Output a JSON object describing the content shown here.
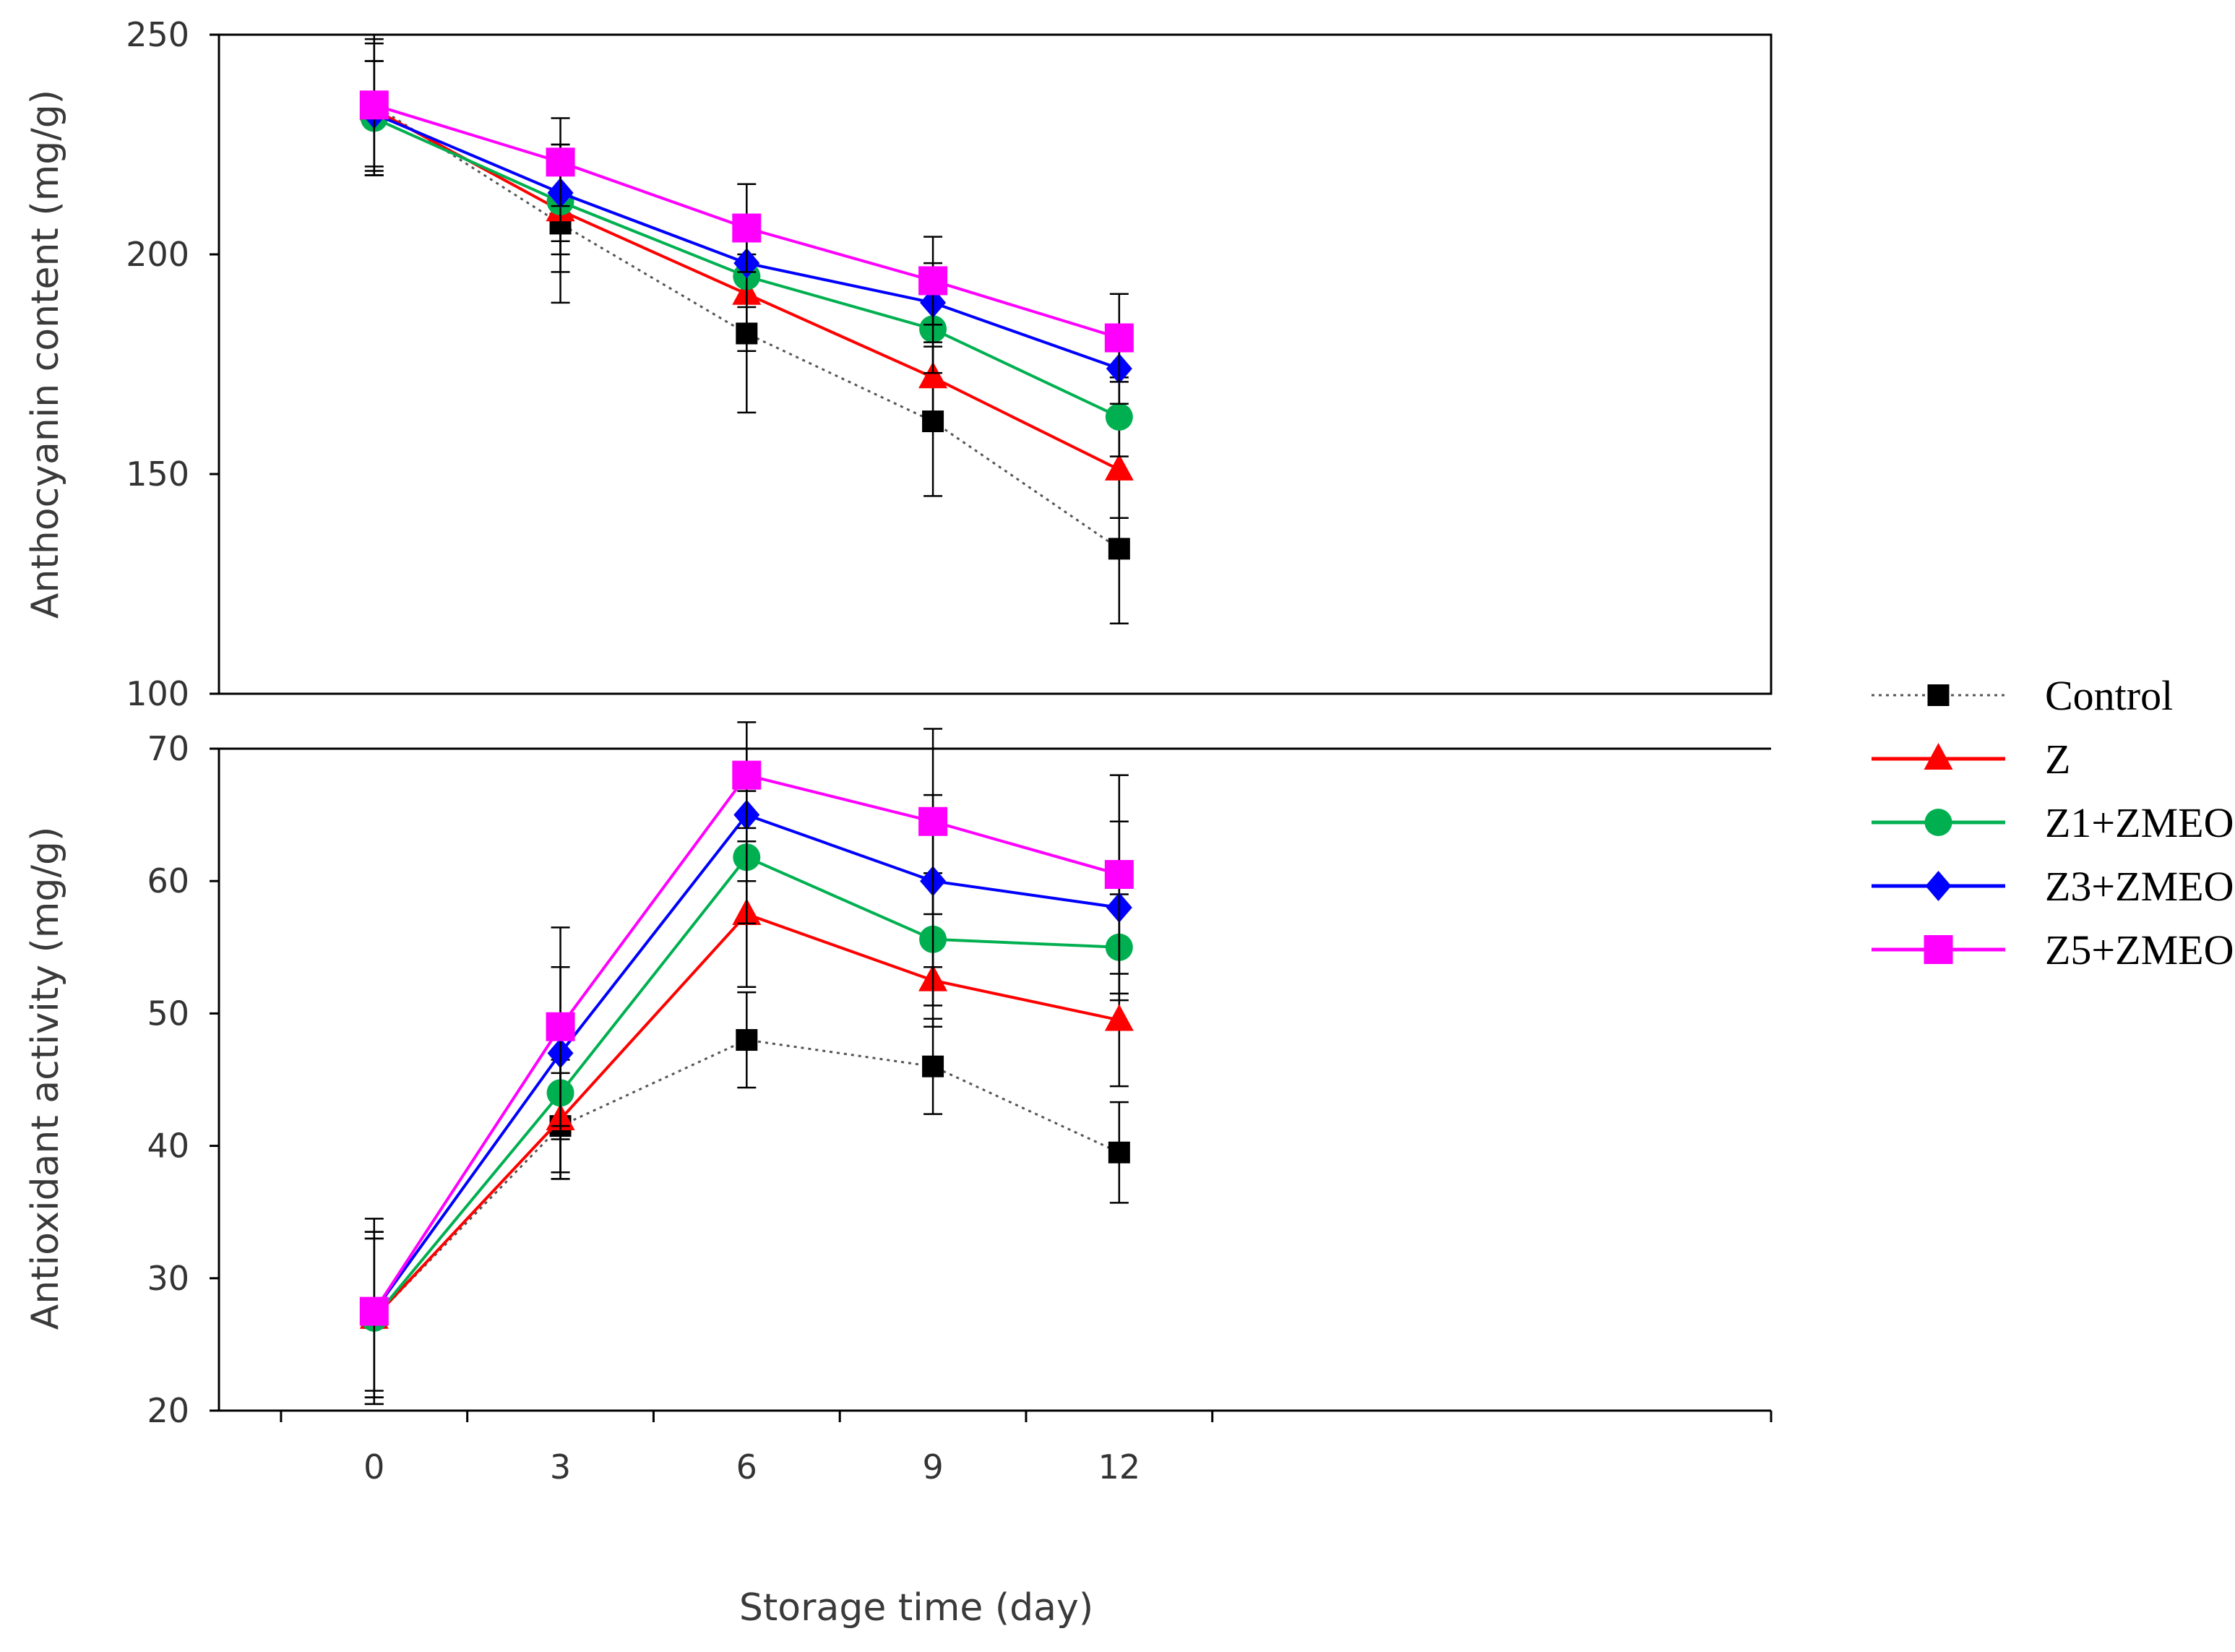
{
  "chart_data": [
    {
      "type": "line",
      "panel": "top",
      "xlabel": "",
      "ylabel": "Anthocyanin content (mg/g)",
      "ylim": [
        100,
        250
      ],
      "yticks": [
        "100",
        "150",
        "200",
        "250"
      ],
      "x": [
        0,
        3,
        6,
        9,
        12
      ],
      "series": [
        {
          "name": "Control",
          "color": "#000000",
          "marker": "square-small",
          "dotted": true,
          "values": [
            234,
            207,
            182,
            162,
            133
          ],
          "errors": [
            16,
            18,
            18,
            17,
            17
          ]
        },
        {
          "name": "Z",
          "color": "#ff0000",
          "marker": "triangle",
          "values": [
            233,
            210,
            191,
            172,
            151
          ],
          "errors": [
            15,
            14,
            13,
            12,
            11
          ]
        },
        {
          "name": "Z1+ZMEO",
          "color": "#00b050",
          "marker": "circle",
          "values": [
            231,
            212,
            195,
            183,
            163
          ],
          "errors": [
            13,
            12,
            11,
            10,
            9
          ]
        },
        {
          "name": "Z3+ZMEO",
          "color": "#0000ff",
          "marker": "diamond",
          "values": [
            232,
            214,
            198,
            189,
            174
          ],
          "errors": [
            12,
            11,
            10,
            9,
            8
          ]
        },
        {
          "name": "Z5+ZMEO",
          "color": "#ff00ff",
          "marker": "square",
          "values": [
            234,
            221,
            206,
            194,
            181
          ],
          "errors": [
            15,
            10,
            10,
            10,
            10
          ]
        }
      ]
    },
    {
      "type": "line",
      "panel": "bottom",
      "xlabel": "Storage time (day)",
      "ylabel": "Antioxidant activity (mg/g)",
      "ylim": [
        20,
        70
      ],
      "xlim": [
        -2.5,
        22.5
      ],
      "yticks": [
        "20",
        "30",
        "40",
        "50",
        "60",
        "70"
      ],
      "x": [
        0,
        3,
        6,
        9,
        12
      ],
      "xticks": [
        "0",
        "3",
        "6",
        "9",
        "12"
      ],
      "series": [
        {
          "name": "Control",
          "color": "#000000",
          "marker": "square-small",
          "dotted": true,
          "values": [
            27,
            41.5,
            48,
            46,
            39.5
          ],
          "errors": [
            6.5,
            4,
            3.6,
            3.6,
            3.8
          ]
        },
        {
          "name": "Z",
          "color": "#ff0000",
          "marker": "triangle",
          "values": [
            27,
            42,
            57.5,
            52.5,
            49.5
          ],
          "errors": [
            6,
            4.5,
            5.5,
            3.5,
            5
          ]
        },
        {
          "name": "Z1+ZMEO",
          "color": "#00b050",
          "marker": "circle",
          "values": [
            27,
            44,
            61.8,
            55.6,
            55
          ],
          "errors": [
            6,
            6,
            5,
            5,
            4
          ]
        },
        {
          "name": "Z3+ZMEO",
          "color": "#0000ff",
          "marker": "diamond",
          "values": [
            27.5,
            47,
            65,
            60,
            58
          ],
          "errors": [
            6,
            6.5,
            5,
            6.5,
            6.5
          ]
        },
        {
          "name": "Z5+ZMEO",
          "color": "#ff00ff",
          "marker": "square",
          "values": [
            27.5,
            49,
            68,
            64.5,
            60.5
          ],
          "errors": [
            7,
            7.5,
            4,
            7,
            7.5
          ]
        }
      ]
    }
  ],
  "legend": {
    "placement": "right",
    "entries": [
      {
        "name": "Control",
        "color": "#000000",
        "marker": "square-small",
        "dotted": true
      },
      {
        "name": "Z",
        "color": "#ff0000",
        "marker": "triangle"
      },
      {
        "name": "Z1+ZMEO",
        "color": "#00b050",
        "marker": "circle"
      },
      {
        "name": "Z3+ZMEO",
        "color": "#0000ff",
        "marker": "diamond"
      },
      {
        "name": "Z5+ZMEO",
        "color": "#ff00ff",
        "marker": "square"
      }
    ]
  }
}
